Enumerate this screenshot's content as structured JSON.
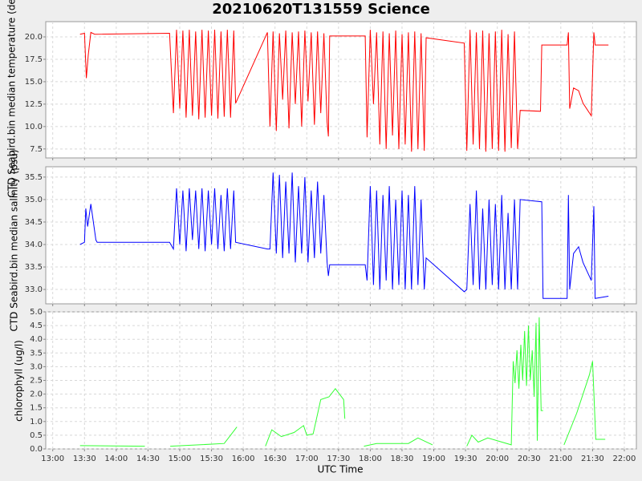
{
  "chart_data": [
    {
      "type": "line",
      "title": "20210620T131559 Science",
      "ylabel": "CTD Seabird.bin median temperature (degC)",
      "color": "#ff0000",
      "x": [
        13.43,
        13.5,
        13.53,
        13.56,
        13.6,
        13.66,
        14.84,
        14.9,
        14.95,
        15.0,
        15.05,
        15.1,
        15.15,
        15.2,
        15.25,
        15.3,
        15.35,
        15.4,
        15.45,
        15.5,
        15.55,
        15.6,
        15.65,
        15.7,
        15.75,
        15.8,
        15.85,
        15.88,
        16.38,
        16.42,
        16.47,
        16.52,
        16.57,
        16.62,
        16.67,
        16.72,
        16.77,
        16.82,
        16.87,
        16.92,
        16.97,
        17.02,
        17.07,
        17.12,
        17.17,
        17.22,
        17.27,
        17.32,
        17.34,
        17.36,
        17.92,
        17.95,
        18.0,
        18.05,
        18.1,
        18.15,
        18.2,
        18.25,
        18.3,
        18.35,
        18.4,
        18.45,
        18.5,
        18.55,
        18.6,
        18.65,
        18.7,
        18.75,
        18.8,
        18.85,
        18.88,
        19.48,
        19.52,
        19.57,
        19.62,
        19.67,
        19.72,
        19.77,
        19.82,
        19.87,
        19.92,
        19.97,
        20.02,
        20.07,
        20.12,
        20.17,
        20.22,
        20.27,
        20.32,
        20.36,
        20.68,
        20.7,
        21.1,
        21.12,
        21.14,
        21.2,
        21.28,
        21.35,
        21.48,
        21.52,
        21.54,
        21.75
      ],
      "values": [
        20.3,
        20.4,
        15.4,
        18,
        20.5,
        20.3,
        20.4,
        11.5,
        20.8,
        12,
        20.7,
        11,
        20.8,
        11.2,
        20.6,
        10.8,
        20.8,
        11,
        20.7,
        11.2,
        20.8,
        10.9,
        20.6,
        11.1,
        20.8,
        11,
        20.7,
        12.6,
        20.5,
        10,
        20.6,
        9.5,
        20.4,
        13,
        20.7,
        9.8,
        20.5,
        12.5,
        20.6,
        10,
        20.7,
        12.8,
        20.5,
        10.2,
        20.6,
        11.5,
        20.4,
        10.5,
        8.9,
        20.1,
        20.1,
        8.8,
        20.8,
        12.5,
        20.5,
        8,
        20.6,
        7.5,
        20.4,
        9,
        20.7,
        7.5,
        20.3,
        8,
        20.5,
        7.2,
        20.6,
        7.5,
        20.4,
        7.3,
        19.9,
        19.3,
        7.3,
        20.8,
        8,
        20.5,
        7.5,
        20.7,
        7.2,
        20.4,
        7.5,
        20.6,
        7.3,
        20.8,
        7.2,
        20.3,
        7.6,
        20.6,
        7.5,
        11.8,
        11.7,
        19.1,
        19.1,
        20.5,
        12,
        14.3,
        14,
        12.6,
        11.2,
        20.5,
        19.1,
        19.1
      ],
      "ylim": [
        6.5,
        21.7
      ],
      "yticks": [
        7.5,
        {
          "value": 10,
          "label": "10.0"
        },
        12.5,
        {
          "value": 15,
          "label": "15.0"
        },
        17.5,
        {
          "value": 20,
          "label": "20.0"
        }
      ],
      "grid": true
    },
    {
      "type": "line",
      "ylabel": "CTD Seabird.bin median salinity (psu)",
      "color": "#0000ff",
      "x": [
        13.43,
        13.5,
        13.52,
        13.55,
        13.6,
        13.68,
        13.7,
        14.84,
        14.9,
        14.95,
        15.0,
        15.05,
        15.1,
        15.15,
        15.2,
        15.25,
        15.3,
        15.35,
        15.4,
        15.45,
        15.5,
        15.55,
        15.6,
        15.65,
        15.7,
        15.75,
        15.8,
        15.85,
        15.88,
        16.38,
        16.42,
        16.47,
        16.52,
        16.57,
        16.62,
        16.67,
        16.72,
        16.77,
        16.82,
        16.87,
        16.92,
        16.97,
        17.02,
        17.07,
        17.12,
        17.17,
        17.22,
        17.27,
        17.32,
        17.34,
        17.36,
        17.92,
        17.95,
        18.0,
        18.05,
        18.1,
        18.15,
        18.2,
        18.25,
        18.3,
        18.35,
        18.4,
        18.45,
        18.5,
        18.55,
        18.6,
        18.65,
        18.7,
        18.75,
        18.8,
        18.85,
        18.88,
        19.48,
        19.52,
        19.57,
        19.62,
        19.67,
        19.72,
        19.77,
        19.82,
        19.87,
        19.92,
        19.97,
        20.02,
        20.07,
        20.12,
        20.17,
        20.22,
        20.27,
        20.32,
        20.36,
        20.7,
        20.72,
        21.1,
        21.12,
        21.14,
        21.2,
        21.28,
        21.35,
        21.48,
        21.52,
        21.54,
        21.75
      ],
      "values": [
        34.0,
        34.05,
        34.8,
        34.4,
        34.9,
        34.1,
        34.05,
        34.05,
        33.9,
        35.25,
        34.0,
        35.2,
        33.85,
        35.25,
        34.1,
        35.2,
        33.9,
        35.25,
        33.85,
        35.2,
        34.0,
        35.25,
        33.9,
        35.1,
        33.85,
        35.25,
        33.9,
        35.2,
        34.05,
        33.9,
        33.9,
        35.6,
        33.8,
        35.55,
        33.7,
        35.4,
        33.8,
        35.6,
        33.6,
        35.3,
        33.8,
        35.5,
        33.6,
        35.2,
        33.7,
        35.4,
        33.8,
        35.1,
        33.6,
        33.3,
        33.55,
        33.55,
        33.2,
        35.3,
        33.1,
        35.2,
        33.0,
        35.1,
        33.2,
        35.3,
        33.0,
        35.0,
        33.1,
        35.2,
        33.0,
        35.1,
        33.0,
        35.3,
        33.1,
        35.0,
        33.0,
        33.7,
        32.95,
        33.0,
        34.9,
        33.1,
        35.2,
        33.0,
        34.8,
        33.0,
        35.0,
        33.1,
        34.9,
        33.0,
        35.1,
        33.0,
        34.7,
        33.0,
        35.0,
        33.0,
        35.0,
        34.95,
        32.8,
        32.8,
        35.1,
        33.0,
        33.8,
        33.95,
        33.6,
        33.2,
        34.85,
        32.8,
        32.85
      ],
      "ylim": [
        32.68,
        35.73
      ],
      "yticks": [
        {
          "value": 33,
          "label": "33.0"
        },
        33.5,
        {
          "value": 34,
          "label": "34.0"
        },
        34.5,
        {
          "value": 35,
          "label": "35.0"
        },
        35.5
      ],
      "grid": true
    },
    {
      "type": "line",
      "ylabel": "chlorophyll (ug/l)",
      "xlabel": "UTC Time",
      "color": "#33ff33",
      "x": [
        13.43,
        14.45,
        14.65,
        14.85,
        15.3,
        15.7,
        15.8,
        15.9,
        16.1,
        16.35,
        16.45,
        16.6,
        16.8,
        16.95,
        17.0,
        17.1,
        17.22,
        17.35,
        17.45,
        17.58,
        17.6,
        17.75,
        17.9,
        18.1,
        18.6,
        18.75,
        18.98,
        19.25,
        19.52,
        19.6,
        19.7,
        19.85,
        20.22,
        20.25,
        20.28,
        20.31,
        20.34,
        20.37,
        20.4,
        20.43,
        20.46,
        20.49,
        20.52,
        20.55,
        20.58,
        20.61,
        20.63,
        20.66,
        20.69,
        20.72,
        20.9,
        21.05,
        21.25,
        21.45,
        21.5,
        21.55,
        21.7
      ],
      "values": [
        0.12,
        0.1,
        null,
        0.1,
        0.15,
        0.2,
        0.5,
        0.8,
        null,
        0.1,
        0.7,
        0.45,
        0.6,
        0.85,
        0.5,
        0.55,
        1.8,
        1.9,
        2.2,
        1.8,
        1.1,
        null,
        0.1,
        0.2,
        0.2,
        0.4,
        0.15,
        null,
        0.1,
        0.5,
        0.25,
        0.4,
        0.15,
        3.2,
        2.4,
        3.6,
        2.2,
        3.8,
        2.5,
        4.3,
        2.3,
        4.5,
        2.5,
        3.6,
        1.9,
        4.6,
        0.3,
        4.8,
        1.4,
        1.4,
        null,
        0.15,
        1.3,
        2.7,
        3.2,
        0.35,
        0.35
      ],
      "ylim": [
        0,
        5
      ],
      "yticks": [
        {
          "value": 0,
          "label": "0.0"
        },
        0.5,
        {
          "value": 1,
          "label": "1.0"
        },
        1.5,
        {
          "value": 2,
          "label": "2.0"
        },
        2.5,
        {
          "value": 3,
          "label": "3.0"
        },
        3.5,
        {
          "value": 4,
          "label": "4.0"
        },
        4.5,
        {
          "value": 5,
          "label": "5.0"
        }
      ],
      "xlim": [
        12.89,
        22.19
      ],
      "xticks": [
        {
          "value": 13,
          "label": "13:00"
        },
        {
          "value": 13.5,
          "label": "13:30"
        },
        {
          "value": 14,
          "label": "14:00"
        },
        {
          "value": 14.5,
          "label": "14:30"
        },
        {
          "value": 15,
          "label": "15:00"
        },
        {
          "value": 15.5,
          "label": "15:30"
        },
        {
          "value": 16,
          "label": "16:00"
        },
        {
          "value": 16.5,
          "label": "16:30"
        },
        {
          "value": 17,
          "label": "17:00"
        },
        {
          "value": 17.5,
          "label": "17:30"
        },
        {
          "value": 18,
          "label": "18:00"
        },
        {
          "value": 18.5,
          "label": "18:30"
        },
        {
          "value": 19,
          "label": "19:00"
        },
        {
          "value": 19.5,
          "label": "19:30"
        },
        {
          "value": 20,
          "label": "20:00"
        },
        {
          "value": 20.5,
          "label": "20:30"
        },
        {
          "value": 21,
          "label": "21:00"
        },
        {
          "value": 21.5,
          "label": "21:30"
        },
        {
          "value": 22,
          "label": "22:00"
        }
      ],
      "grid": true
    }
  ]
}
